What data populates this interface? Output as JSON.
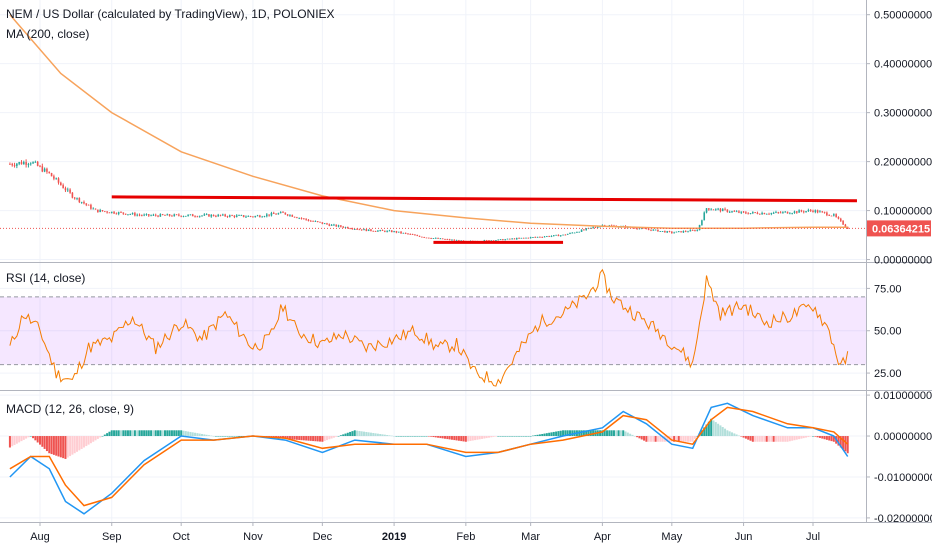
{
  "header": {
    "title": "NEM / US Dollar (calculated by TradingView), 1D, POLONIEX",
    "ma_label": "MA (200, close)"
  },
  "rsi_pane": {
    "label": "RSI (14, close)"
  },
  "macd_pane": {
    "label": "MACD (12, 26, close, 9)"
  },
  "chart_data": [
    {
      "type": "line",
      "title": "NEM / US Dollar (calculated by TradingView), 1D, POLONIEX",
      "x_ticks": [
        "Aug",
        "Sep",
        "Oct",
        "Nov",
        "Dec",
        "2019",
        "Feb",
        "Mar",
        "Apr",
        "May",
        "Jun",
        "Jul"
      ],
      "y_ticks": [
        "0.00000000",
        "0.10000000",
        "0.20000000",
        "0.30000000",
        "0.40000000",
        "0.50000000"
      ],
      "ylim": [
        -0.005,
        0.53
      ],
      "last_price": "0.06364215",
      "colors": {
        "up": "#26a69a",
        "down": "#ef5350",
        "ma": "#f7a35c",
        "trendline": "#e60000"
      },
      "series": [
        {
          "name": "MA (200, close)",
          "x": [
            "2018-07-19",
            "2018-08-10",
            "2018-09-01",
            "2018-10-01",
            "2018-11-01",
            "2018-12-01",
            "2019-01-01",
            "2019-02-01",
            "2019-03-01",
            "2019-04-01",
            "2019-05-01",
            "2019-06-01",
            "2019-07-01",
            "2019-07-16"
          ],
          "values": [
            0.5,
            0.38,
            0.3,
            0.22,
            0.17,
            0.13,
            0.1,
            0.085,
            0.074,
            0.068,
            0.064,
            0.064,
            0.066,
            0.066
          ]
        },
        {
          "name": "close",
          "x": [
            "2018-07-19",
            "2018-07-28",
            "2018-08-05",
            "2018-08-15",
            "2018-08-25",
            "2018-09-05",
            "2018-09-15",
            "2018-10-01",
            "2018-10-15",
            "2018-11-01",
            "2018-11-14",
            "2018-11-25",
            "2018-12-05",
            "2018-12-20",
            "2019-01-01",
            "2019-01-15",
            "2019-02-01",
            "2019-02-15",
            "2019-03-01",
            "2019-03-15",
            "2019-04-01",
            "2019-04-15",
            "2019-05-01",
            "2019-05-12",
            "2019-05-16",
            "2019-06-01",
            "2019-06-15",
            "2019-07-01",
            "2019-07-10",
            "2019-07-16"
          ],
          "values": [
            0.195,
            0.2,
            0.175,
            0.13,
            0.1,
            0.095,
            0.09,
            0.09,
            0.09,
            0.088,
            0.095,
            0.08,
            0.07,
            0.06,
            0.057,
            0.045,
            0.037,
            0.04,
            0.045,
            0.05,
            0.07,
            0.065,
            0.055,
            0.06,
            0.105,
            0.095,
            0.095,
            0.1,
            0.09,
            0.064
          ]
        }
      ],
      "annotations": [
        {
          "type": "horizontal-line",
          "x": [
            "2018-09-01",
            "2019-07-20"
          ],
          "y": [
            0.128,
            0.12
          ]
        },
        {
          "type": "horizontal-line",
          "x": [
            "2019-01-18",
            "2019-03-15"
          ],
          "y": [
            0.035,
            0.035
          ]
        }
      ]
    },
    {
      "type": "line",
      "title": "RSI (14, close)",
      "y_ticks": [
        "25.00",
        "50.00",
        "75.00"
      ],
      "ylim": [
        15,
        90
      ],
      "band": [
        30,
        70
      ],
      "series": [
        {
          "name": "RSI (14, close)",
          "x": [
            "2018-07-19",
            "2018-07-25",
            "2018-08-01",
            "2018-08-08",
            "2018-08-15",
            "2018-08-22",
            "2018-09-01",
            "2018-09-10",
            "2018-09-20",
            "2018-10-01",
            "2018-10-10",
            "2018-10-20",
            "2018-11-01",
            "2018-11-08",
            "2018-11-14",
            "2018-11-20",
            "2018-12-01",
            "2018-12-10",
            "2018-12-20",
            "2019-01-01",
            "2019-01-10",
            "2019-01-20",
            "2019-01-28",
            "2019-02-05",
            "2019-02-15",
            "2019-02-25",
            "2019-03-05",
            "2019-03-15",
            "2019-03-25",
            "2019-04-01",
            "2019-04-05",
            "2019-04-15",
            "2019-04-25",
            "2019-05-05",
            "2019-05-10",
            "2019-05-16",
            "2019-05-22",
            "2019-06-01",
            "2019-06-10",
            "2019-06-20",
            "2019-07-01",
            "2019-07-08",
            "2019-07-13",
            "2019-07-16"
          ],
          "values": [
            40,
            60,
            50,
            25,
            20,
            40,
            45,
            58,
            40,
            55,
            45,
            60,
            40,
            45,
            65,
            50,
            42,
            48,
            40,
            45,
            50,
            40,
            42,
            25,
            20,
            40,
            55,
            60,
            70,
            82,
            70,
            60,
            50,
            38,
            30,
            80,
            60,
            65,
            55,
            58,
            65,
            50,
            28,
            35
          ]
        }
      ]
    },
    {
      "type": "line",
      "title": "MACD (12, 26, close, 9)",
      "y_ticks": [
        "-0.02000000",
        "-0.01000000",
        "0.00000000",
        "0.01000000"
      ],
      "ylim": [
        -0.021,
        0.011
      ],
      "series": [
        {
          "name": "MACD",
          "x": [
            "2018-07-19",
            "2018-07-28",
            "2018-08-05",
            "2018-08-12",
            "2018-08-20",
            "2018-09-01",
            "2018-09-15",
            "2018-10-01",
            "2018-10-15",
            "2018-11-01",
            "2018-11-15",
            "2018-12-01",
            "2018-12-15",
            "2019-01-01",
            "2019-01-15",
            "2019-02-01",
            "2019-02-15",
            "2019-03-01",
            "2019-03-15",
            "2019-04-01",
            "2019-04-10",
            "2019-04-20",
            "2019-05-01",
            "2019-05-10",
            "2019-05-18",
            "2019-05-25",
            "2019-06-05",
            "2019-06-20",
            "2019-07-01",
            "2019-07-10",
            "2019-07-16"
          ],
          "values": [
            -0.01,
            -0.005,
            -0.008,
            -0.016,
            -0.019,
            -0.014,
            -0.006,
            0.0,
            -0.001,
            0.0,
            -0.001,
            -0.004,
            -0.001,
            -0.002,
            -0.002,
            -0.005,
            -0.004,
            -0.002,
            0.0,
            0.002,
            0.006,
            0.003,
            -0.002,
            -0.003,
            0.007,
            0.008,
            0.005,
            0.002,
            0.002,
            0.0,
            -0.005
          ]
        },
        {
          "name": "Signal",
          "x": [
            "2018-07-19",
            "2018-07-28",
            "2018-08-05",
            "2018-08-12",
            "2018-08-20",
            "2018-09-01",
            "2018-09-15",
            "2018-10-01",
            "2018-10-15",
            "2018-11-01",
            "2018-11-15",
            "2018-12-01",
            "2018-12-15",
            "2019-01-01",
            "2019-01-15",
            "2019-02-01",
            "2019-02-15",
            "2019-03-01",
            "2019-03-15",
            "2019-04-01",
            "2019-04-10",
            "2019-04-20",
            "2019-05-01",
            "2019-05-10",
            "2019-05-18",
            "2019-05-25",
            "2019-06-05",
            "2019-06-20",
            "2019-07-01",
            "2019-07-10",
            "2019-07-16"
          ],
          "values": [
            -0.008,
            -0.005,
            -0.005,
            -0.012,
            -0.017,
            -0.015,
            -0.007,
            -0.001,
            -0.001,
            0.0,
            -0.0005,
            -0.003,
            -0.002,
            -0.002,
            -0.002,
            -0.004,
            -0.004,
            -0.002,
            -0.001,
            0.001,
            0.005,
            0.004,
            -0.001,
            -0.002,
            0.004,
            0.007,
            0.006,
            0.003,
            0.002,
            0.001,
            -0.002
          ]
        }
      ]
    }
  ]
}
